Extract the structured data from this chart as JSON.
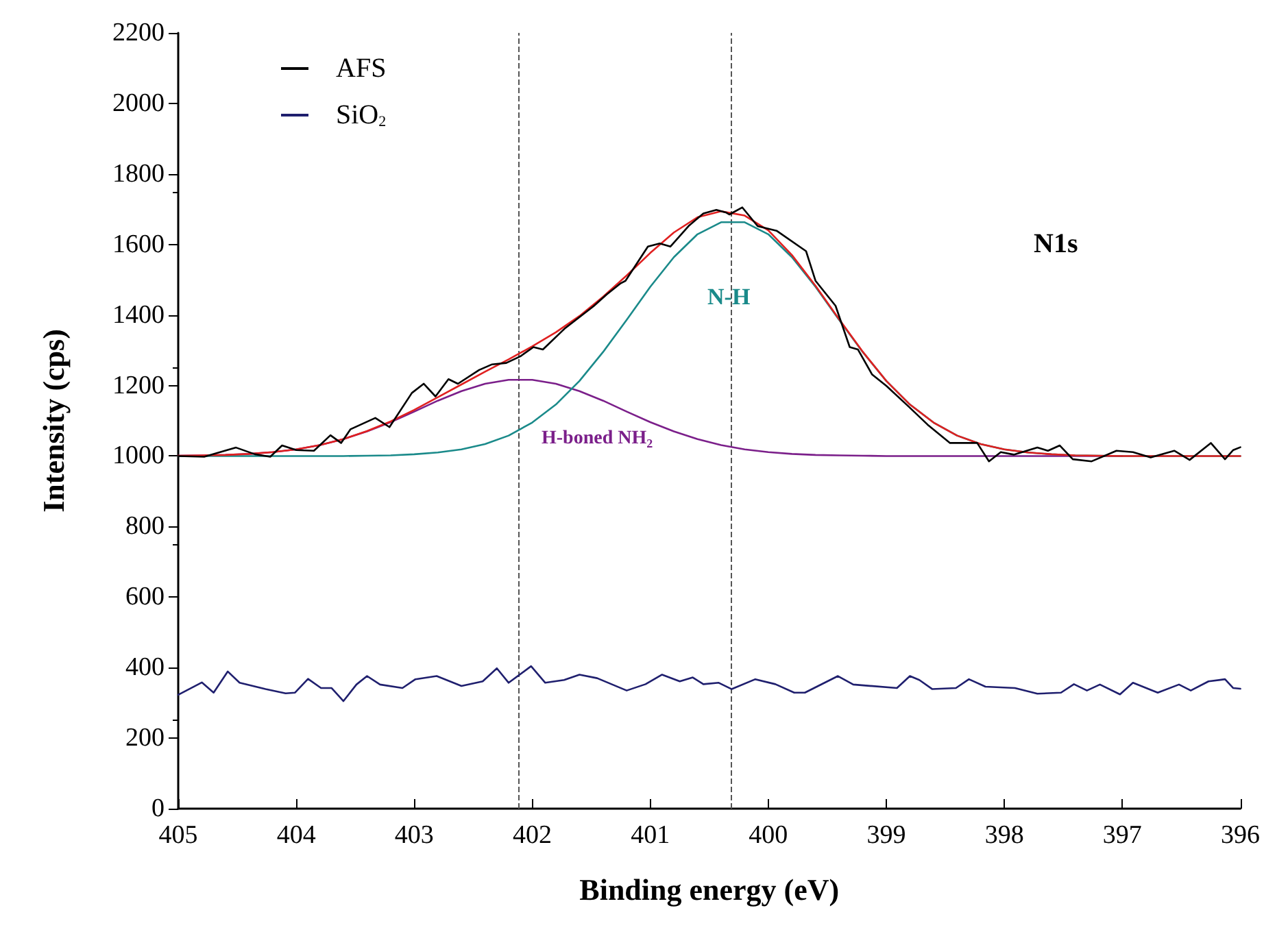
{
  "chart_data": {
    "type": "line",
    "xlabel": "Binding energy (eV)",
    "ylabel": "Intensity (cps)",
    "xlim": [
      405,
      396
    ],
    "xticks": [
      405,
      404,
      403,
      402,
      401,
      400,
      399,
      398,
      397,
      396
    ],
    "ylim": [
      0,
      2200
    ],
    "yticks": [
      0,
      200,
      400,
      600,
      800,
      1000,
      1200,
      1400,
      1600,
      1800,
      2000,
      2200
    ],
    "grid": false,
    "legend": "top left",
    "marker": "none",
    "line_style": "solid",
    "series": [
      {
        "name": "AFS",
        "color": "#000000",
        "x": [
          405,
          404.78,
          404.51,
          404.35,
          404.22,
          404.12,
          404.0,
          403.85,
          403.71,
          403.62,
          403.54,
          403.33,
          403.21,
          403.02,
          402.92,
          402.82,
          402.71,
          402.63,
          402.45,
          402.34,
          402.22,
          402.1,
          401.99,
          401.91,
          401.72,
          401.48,
          401.37,
          401.25,
          401.21,
          401.02,
          400.92,
          400.83,
          400.67,
          400.55,
          400.44,
          400.36,
          400.33,
          400.22,
          400.09,
          399.93,
          399.68,
          399.6,
          399.43,
          399.31,
          399.24,
          399.12,
          399.0,
          398.81,
          398.65,
          398.46,
          398.23,
          398.13,
          398.03,
          397.92,
          397.72,
          397.63,
          397.53,
          397.42,
          397.26,
          397.05,
          396.91,
          396.76,
          396.56,
          396.43,
          396.25,
          396.13,
          396.06,
          396.0
        ],
        "values": [
          1000,
          998,
          1024,
          1005,
          998,
          1030,
          1017,
          1015,
          1059,
          1037,
          1076,
          1108,
          1082,
          1179,
          1205,
          1169,
          1218,
          1205,
          1244,
          1260,
          1264,
          1283,
          1309,
          1302,
          1363,
          1425,
          1458,
          1490,
          1497,
          1594,
          1603,
          1594,
          1654,
          1688,
          1698,
          1691,
          1685,
          1705,
          1652,
          1639,
          1581,
          1497,
          1426,
          1309,
          1302,
          1231,
          1199,
          1140,
          1089,
          1037,
          1037,
          985,
          1011,
          1004,
          1024,
          1015,
          1030,
          991,
          985,
          1015,
          1011,
          996,
          1015,
          989,
          1037,
          991,
          1017,
          1025
        ]
      },
      {
        "name": "SiO$_{2}$",
        "color": "#1f1f6e",
        "x": [
          405,
          404.8,
          404.7,
          404.58,
          404.48,
          404.26,
          404.09,
          404.01,
          403.9,
          403.79,
          403.7,
          403.6,
          403.49,
          403.4,
          403.29,
          403.1,
          402.99,
          402.81,
          402.6,
          402.42,
          402.3,
          402.2,
          402.01,
          401.89,
          401.73,
          401.6,
          401.45,
          401.2,
          401.04,
          400.9,
          400.75,
          400.64,
          400.55,
          400.42,
          400.31,
          400.11,
          399.94,
          399.78,
          399.69,
          399.41,
          399.28,
          398.91,
          398.8,
          398.72,
          398.61,
          398.41,
          398.3,
          398.16,
          397.91,
          397.72,
          397.52,
          397.41,
          397.3,
          397.19,
          397.02,
          396.91,
          396.7,
          396.52,
          396.42,
          396.27,
          396.13,
          396.06,
          396.0
        ],
        "values": [
          323,
          358,
          329,
          389,
          357,
          339,
          327,
          329,
          368,
          342,
          342,
          305,
          352,
          376,
          352,
          342,
          367,
          376,
          348,
          361,
          398,
          357,
          404,
          357,
          365,
          380,
          370,
          335,
          353,
          380,
          361,
          372,
          353,
          357,
          339,
          367,
          353,
          329,
          329,
          376,
          352,
          342,
          376,
          365,
          339,
          342,
          367,
          346,
          342,
          326,
          329,
          353,
          335,
          352,
          324,
          357,
          329,
          352,
          335,
          361,
          367,
          342,
          340
        ]
      },
      {
        "color": "#e02020",
        "x": [
          405,
          404.8,
          404.6,
          404.4,
          404.2,
          404.0,
          403.8,
          403.6,
          403.4,
          403.2,
          403.0,
          402.8,
          402.6,
          402.4,
          402.2,
          402.0,
          401.8,
          401.6,
          401.4,
          401.2,
          401.0,
          400.8,
          400.6,
          400.4,
          400.2,
          400.0,
          399.8,
          399.6,
          399.4,
          399.2,
          399.0,
          398.8,
          398.6,
          398.4,
          398.2,
          398.0,
          397.8,
          397.6,
          397.4,
          397.2,
          397.0,
          396.0
        ],
        "values": [
          1001,
          1002,
          1003,
          1006,
          1011,
          1019,
          1031,
          1048,
          1071,
          1098,
          1131,
          1167,
          1203,
          1239,
          1274,
          1311,
          1351,
          1397,
          1452,
          1512,
          1576,
          1634,
          1677,
          1694,
          1682,
          1640,
          1570,
          1483,
          1388,
          1296,
          1213,
          1146,
          1095,
          1058,
          1034,
          1019,
          1010,
          1005,
          1002,
          1001,
          1000,
          1000
        ]
      },
      {
        "color": "#1a8a8a",
        "x": [
          405,
          403.6,
          403.4,
          403.2,
          403.0,
          402.8,
          402.6,
          402.4,
          402.2,
          402.0,
          401.8,
          401.6,
          401.4,
          401.2,
          401.0,
          400.8,
          400.6,
          400.4,
          400.2,
          400.0,
          399.8,
          399.6,
          399.4,
          399.2,
          399.0,
          398.8,
          398.6,
          398.4,
          398.2,
          398.0,
          397.8,
          397.6,
          397.4,
          397.2,
          397.0,
          396.0
        ],
        "values": [
          1000,
          1000,
          1001,
          1002,
          1005,
          1010,
          1019,
          1034,
          1058,
          1095,
          1146,
          1213,
          1295,
          1386,
          1480,
          1564,
          1629,
          1663,
          1663,
          1629,
          1564,
          1480,
          1386,
          1295,
          1213,
          1146,
          1095,
          1058,
          1034,
          1019,
          1010,
          1005,
          1002,
          1001,
          1000,
          1000
        ]
      },
      {
        "color": "#7b1f8a",
        "x": [
          405,
          404.8,
          404.6,
          404.4,
          404.2,
          404.0,
          403.8,
          403.6,
          403.4,
          403.2,
          403.0,
          402.8,
          402.6,
          402.4,
          402.2,
          402.0,
          401.8,
          401.6,
          401.4,
          401.2,
          401.0,
          400.8,
          400.6,
          400.4,
          400.2,
          400.0,
          399.8,
          399.6,
          399.4,
          399.2,
          399.0,
          398.0,
          397.0
        ],
        "values": [
          1001,
          1002,
          1003,
          1006,
          1011,
          1019,
          1031,
          1048,
          1070,
          1096,
          1126,
          1157,
          1184,
          1205,
          1216,
          1216,
          1205,
          1184,
          1157,
          1126,
          1096,
          1070,
          1048,
          1031,
          1019,
          1011,
          1006,
          1003,
          1002,
          1001,
          1000,
          1000,
          1000
        ]
      }
    ],
    "ref_lines": [
      {
        "axis": "x",
        "value": 402.12,
        "color": "#555555",
        "line_style": "dashed"
      },
      {
        "axis": "x",
        "value": 400.31,
        "color": "#555555",
        "line_style": "dashed"
      }
    ],
    "annotations": [
      "H-boned NH$_{2}$",
      "N-H",
      "N1s"
    ]
  }
}
